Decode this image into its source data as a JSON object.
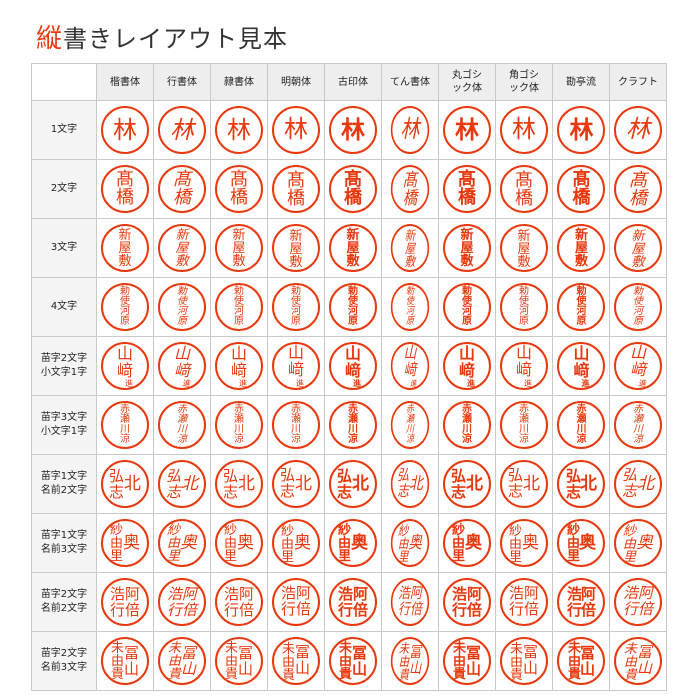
{
  "title": {
    "accent": "縦",
    "rest": "書きレイアウト見本"
  },
  "accent_color": "#e8380d",
  "columns": [
    "楷書体",
    "行書体",
    "隷書体",
    "明朝体",
    "古印体",
    "てん書体",
    "丸ゴシ\nック体",
    "角ゴシ\nック体",
    "勘亭流",
    "クラフト"
  ],
  "rows": [
    {
      "label": "1文字",
      "layout": "single",
      "chars": [
        "林"
      ]
    },
    {
      "label": "2文字",
      "layout": "vertical",
      "chars": [
        "髙",
        "橋"
      ]
    },
    {
      "label": "3文字",
      "layout": "vertical",
      "chars": [
        "新",
        "屋",
        "敷"
      ]
    },
    {
      "label": "4文字",
      "layout": "vertical",
      "chars": [
        "勅",
        "使",
        "河",
        "原"
      ]
    },
    {
      "label": "苗字2文字\n小文字1字",
      "layout": "main_small",
      "main": [
        "山",
        "﨑"
      ],
      "small": [
        "進"
      ]
    },
    {
      "label": "苗字3文字\n小文字1字",
      "layout": "vertical",
      "chars": [
        "赤",
        "瀬",
        "川",
        "涼"
      ]
    },
    {
      "label": "苗字1文字\n名前2文字",
      "layout": "two_col",
      "right": [
        "北"
      ],
      "left": [
        "弘",
        "志"
      ]
    },
    {
      "label": "苗字1文字\n名前3文字",
      "layout": "two_col",
      "right": [
        "奥"
      ],
      "left": [
        "紗",
        "由",
        "里"
      ]
    },
    {
      "label": "苗字2文字\n名前2文字",
      "layout": "two_col",
      "right": [
        "阿",
        "倍"
      ],
      "left": [
        "浩",
        "行"
      ]
    },
    {
      "label": "苗字2文字\n名前3文字",
      "layout": "two_col",
      "right": [
        "冨",
        "山"
      ],
      "left": [
        "未",
        "由",
        "貴"
      ]
    }
  ]
}
